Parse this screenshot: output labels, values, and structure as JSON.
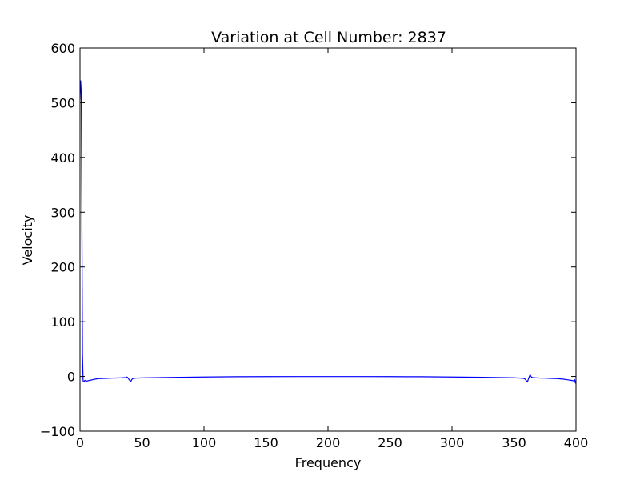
{
  "chart_data": {
    "type": "line",
    "title": "Variation at Cell Number: 2837",
    "xlabel": "Frequency",
    "ylabel": "Velocity",
    "xlim": [
      0,
      400
    ],
    "ylim": [
      -100,
      600
    ],
    "xticks": [
      0,
      50,
      100,
      150,
      200,
      250,
      300,
      350,
      400
    ],
    "yticks": [
      -100,
      0,
      100,
      200,
      300,
      400,
      500,
      600
    ],
    "xtick_labels": [
      "0",
      "50",
      "100",
      "150",
      "200",
      "250",
      "300",
      "350",
      "400"
    ],
    "ytick_labels": [
      "−100",
      "0",
      "100",
      "200",
      "300",
      "400",
      "500",
      "600"
    ],
    "grid": false,
    "legend": "none",
    "series": [
      {
        "color": "#0000ff",
        "x": [
          0,
          0.5,
          1,
          1.5,
          2,
          2.5,
          3,
          4,
          5,
          6,
          8,
          10,
          12,
          15,
          20,
          25,
          30,
          34,
          36,
          37,
          38,
          39,
          40,
          41,
          42,
          43,
          45,
          50,
          60,
          75,
          100,
          125,
          150,
          175,
          200,
          225,
          250,
          275,
          300,
          325,
          340,
          350,
          355,
          358,
          359,
          360,
          361,
          362,
          363,
          364,
          365,
          367,
          370,
          375,
          380,
          385,
          390,
          393,
          396,
          398,
          399,
          399.5,
          400
        ],
        "y": [
          505,
          540,
          520,
          300,
          40,
          -8,
          -10,
          -7,
          -9,
          -8,
          -7,
          -6,
          -5,
          -4,
          -3.5,
          -3,
          -2.8,
          -2.5,
          -2,
          -3,
          -1,
          -4,
          -7,
          -9,
          -5,
          -3.5,
          -3,
          -2.6,
          -2.2,
          -1.6,
          -1,
          -0.5,
          -0.3,
          -0.2,
          -0.2,
          -0.2,
          -0.3,
          -0.5,
          -1,
          -1.5,
          -2,
          -2.5,
          -3,
          -3.5,
          -5,
          -8,
          -9,
          -2,
          3,
          -1,
          -2,
          -2.5,
          -2.8,
          -3,
          -3.5,
          -4,
          -5,
          -6,
          -7,
          -8,
          -6,
          -12,
          -8
        ]
      }
    ]
  }
}
